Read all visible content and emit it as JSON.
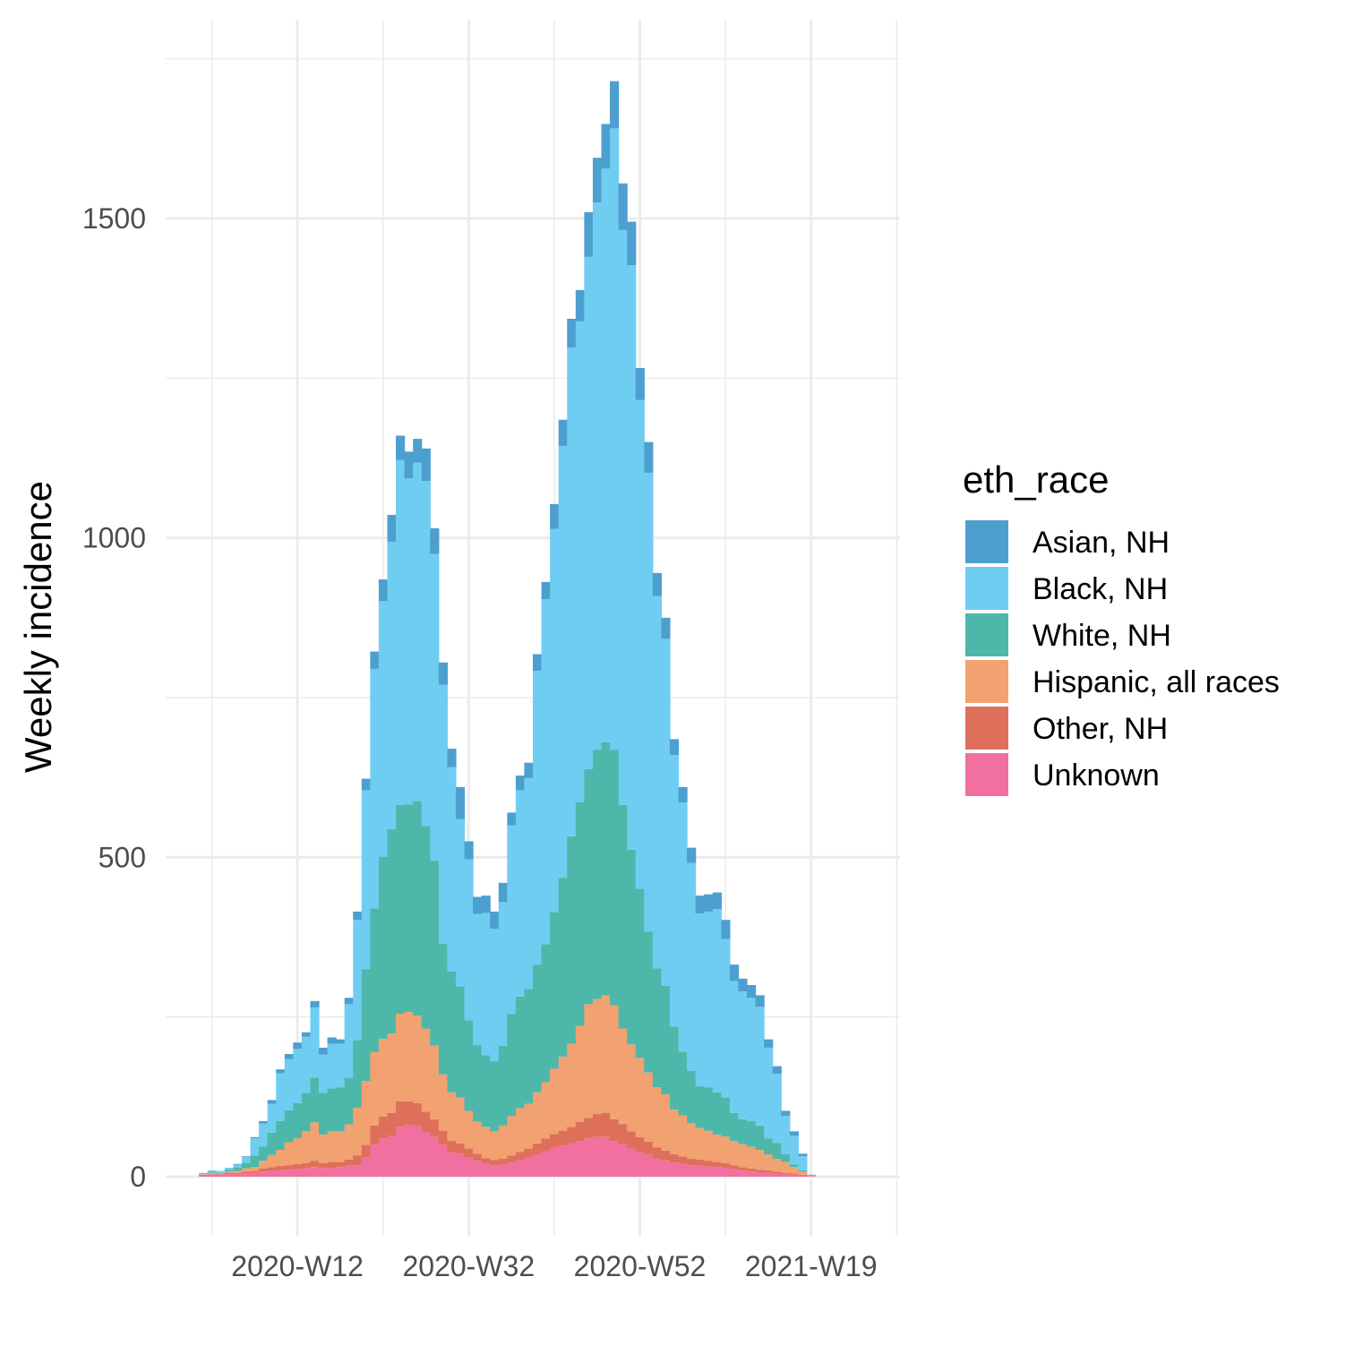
{
  "chart_data": {
    "type": "bar",
    "stacked": true,
    "ylabel": "Weekly incidence",
    "xlabel": "",
    "ylim": [
      -80,
      1750
    ],
    "y_ticks": [
      0,
      500,
      1000,
      1500
    ],
    "x_tick_labels": [
      "2020-W12",
      "2020-W32",
      "2020-W52",
      "2021-W19"
    ],
    "x_tick_week_index": [
      10,
      30,
      50,
      70
    ],
    "grid": true,
    "legend": {
      "title": "eth_race",
      "position": "right",
      "entries": [
        "Asian, NH",
        "Black, NH",
        "White, NH",
        "Hispanic, all races",
        "Other, NH",
        "Unknown"
      ]
    },
    "week_index_start": -1,
    "totals": [
      6,
      10,
      9,
      14,
      20,
      32,
      62,
      87,
      120,
      168,
      192,
      210,
      226,
      275,
      202,
      218,
      215,
      280,
      415,
      623,
      817,
      935,
      1036,
      1160,
      1135,
      1155,
      1140,
      1015,
      805,
      670,
      610,
      525,
      438,
      440,
      415,
      460,
      570,
      628,
      648,
      818,
      931,
      1053,
      1185,
      1343,
      1385,
      1510,
      1595,
      1648,
      1715,
      1555,
      1495,
      1265,
      1150,
      945,
      875,
      685,
      610,
      515,
      440,
      442,
      445,
      402,
      332,
      310,
      300,
      284,
      215,
      173,
      103,
      71,
      36,
      3
    ],
    "series": [
      {
        "name": "Unknown",
        "values": [
          2,
          3,
          3,
          4,
          4,
          5,
          6,
          8,
          9,
          10,
          11,
          12,
          13,
          15,
          13,
          14,
          15,
          17,
          18,
          30,
          50,
          60,
          64,
          78,
          82,
          80,
          70,
          62,
          50,
          38,
          36,
          30,
          25,
          20,
          18,
          19,
          22,
          26,
          30,
          35,
          40,
          45,
          48,
          52,
          56,
          60,
          62,
          62,
          56,
          50,
          44,
          38,
          34,
          28,
          25,
          22,
          20,
          18,
          17,
          16,
          15,
          14,
          12,
          10,
          8,
          7,
          6,
          5,
          4,
          3,
          2,
          1
        ]
      },
      {
        "name": "Other, NH",
        "values": [
          1,
          1,
          1,
          2,
          2,
          3,
          3,
          5,
          6,
          7,
          7,
          8,
          8,
          10,
          8,
          9,
          8,
          10,
          15,
          20,
          30,
          34,
          36,
          40,
          36,
          35,
          32,
          28,
          22,
          18,
          16,
          14,
          11,
          9,
          8,
          9,
          11,
          13,
          14,
          17,
          20,
          22,
          24,
          26,
          30,
          32,
          36,
          38,
          34,
          32,
          27,
          24,
          21,
          18,
          16,
          13,
          12,
          10,
          10,
          9,
          8,
          7,
          6,
          5,
          5,
          4,
          4,
          3,
          2,
          2,
          1,
          0
        ]
      },
      {
        "name": "Hispanic, all races",
        "values": [
          1,
          2,
          1,
          2,
          3,
          5,
          6,
          12,
          19,
          25,
          36,
          40,
          50,
          60,
          45,
          48,
          48,
          55,
          75,
          100,
          115,
          122,
          124,
          137,
          140,
          137,
          130,
          115,
          88,
          76,
          72,
          59,
          50,
          49,
          45,
          52,
          62,
          68,
          70,
          80,
          88,
          102,
          116,
          130,
          150,
          178,
          180,
          184,
          178,
          150,
          136,
          124,
          108,
          94,
          88,
          70,
          64,
          56,
          49,
          47,
          43,
          42,
          38,
          36,
          34,
          31,
          25,
          20,
          17,
          10,
          5,
          1
        ]
      },
      {
        "name": "White, NH",
        "values": [
          1,
          2,
          1,
          3,
          5,
          9,
          18,
          22,
          35,
          45,
          50,
          55,
          60,
          70,
          65,
          67,
          69,
          73,
          106,
          175,
          225,
          285,
          320,
          327,
          325,
          336,
          317,
          290,
          205,
          189,
          174,
          142,
          120,
          112,
          110,
          125,
          160,
          175,
          180,
          200,
          216,
          245,
          280,
          325,
          350,
          368,
          390,
          396,
          400,
          350,
          305,
          265,
          221,
          186,
          170,
          130,
          100,
          82,
          66,
          68,
          66,
          61,
          44,
          39,
          40,
          38,
          25,
          25,
          12,
          4,
          2,
          1
        ]
      },
      {
        "name": "Black, NH",
        "values": [
          1,
          2,
          3,
          3,
          5,
          9,
          27,
          36,
          45,
          75,
          80,
          85,
          88,
          110,
          60,
          70,
          68,
          115,
          188,
          280,
          375,
          400,
          450,
          540,
          510,
          530,
          540,
          480,
          405,
          320,
          262,
          252,
          205,
          223,
          207,
          225,
          295,
          323,
          330,
          460,
          540,
          600,
          676,
          765,
          753,
          802,
          857,
          898,
          973,
          900,
          915,
          765,
          718,
          583,
          543,
          425,
          390,
          325,
          270,
          275,
          287,
          248,
          206,
          200,
          193,
          186,
          142,
          108,
          60,
          45,
          22,
          0
        ]
      },
      {
        "name": "Asian, NH",
        "values": [
          0,
          0,
          0,
          0,
          1,
          1,
          2,
          4,
          6,
          6,
          8,
          10,
          7,
          10,
          11,
          10,
          7,
          10,
          13,
          18,
          27,
          34,
          42,
          38,
          42,
          37,
          51,
          40,
          35,
          29,
          50,
          28,
          27,
          27,
          27,
          30,
          20,
          23,
          24,
          26,
          27,
          39,
          41,
          45,
          49,
          70,
          70,
          70,
          74,
          73,
          68,
          50,
          48,
          36,
          33,
          25,
          24,
          24,
          28,
          27,
          26,
          30,
          26,
          20,
          20,
          18,
          13,
          12,
          8,
          7,
          4,
          0
        ]
      }
    ],
    "colors": {
      "Asian, NH": "#4d9fd0",
      "Black, NH": "#6fcdf2",
      "White, NH": "#4db8aa",
      "Hispanic, all races": "#f2a170",
      "Other, NH": "#de705b",
      "Unknown": "#f270a0"
    }
  }
}
